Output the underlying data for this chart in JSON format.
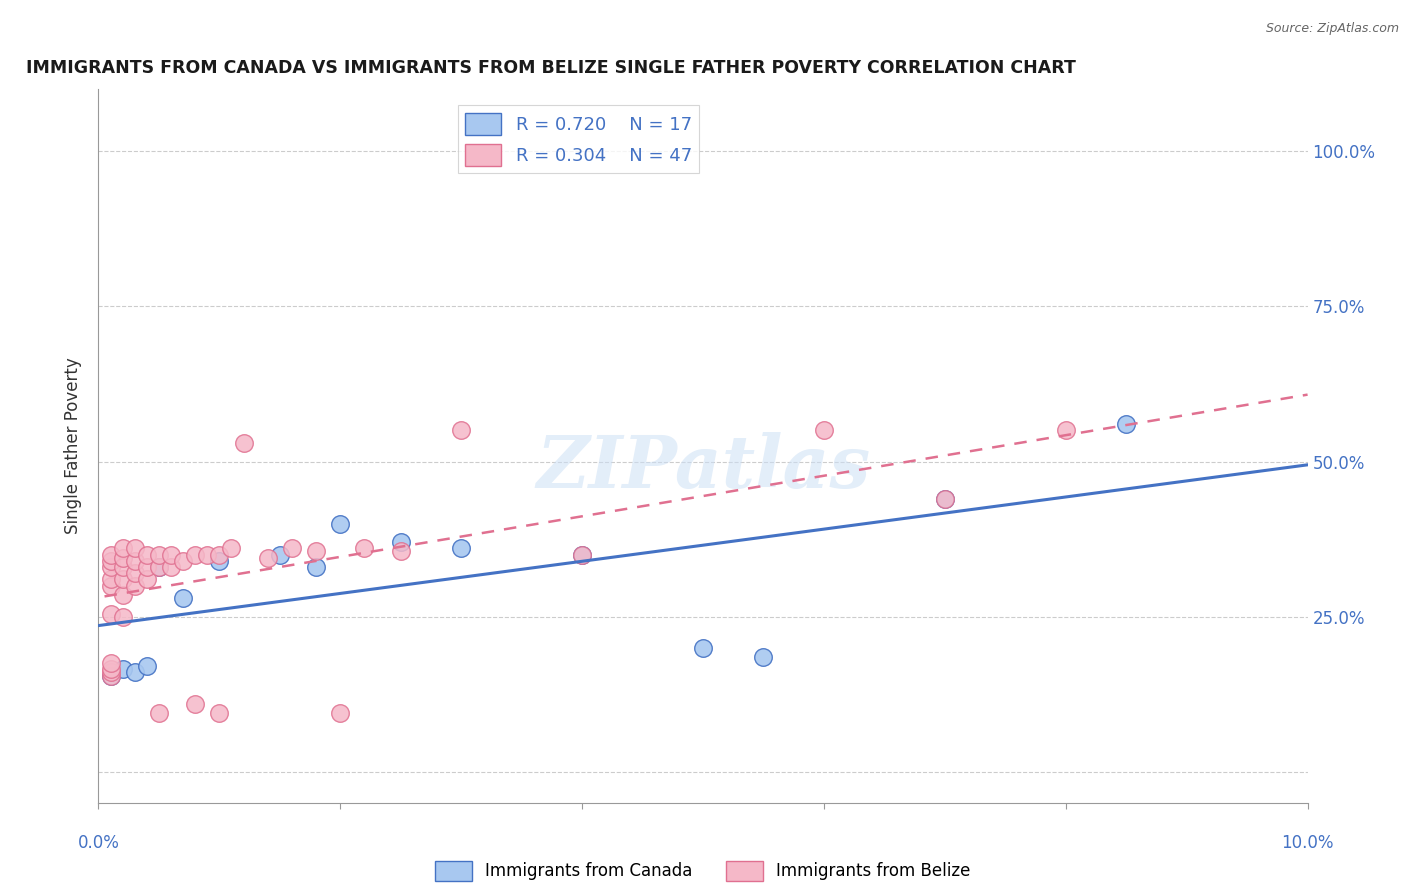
{
  "title": "IMMIGRANTS FROM CANADA VS IMMIGRANTS FROM BELIZE SINGLE FATHER POVERTY CORRELATION CHART",
  "source": "Source: ZipAtlas.com",
  "ylabel": "Single Father Poverty",
  "legend_entries": [
    {
      "label": "R = 0.720    N = 17",
      "color": "#a8c8f0"
    },
    {
      "label": "R = 0.304    N = 47",
      "color": "#f0a8b8"
    }
  ],
  "y_ticks": [
    0.0,
    0.25,
    0.5,
    0.75,
    1.0
  ],
  "y_tick_labels": [
    "",
    "25.0%",
    "50.0%",
    "75.0%",
    "100.0%"
  ],
  "x_lim": [
    0.0,
    0.1
  ],
  "y_lim": [
    -0.05,
    1.1
  ],
  "watermark": "ZIPatlas",
  "canada_points": [
    [
      0.001,
      0.155
    ],
    [
      0.002,
      0.165
    ],
    [
      0.003,
      0.16
    ],
    [
      0.004,
      0.17
    ],
    [
      0.005,
      0.33
    ],
    [
      0.007,
      0.28
    ],
    [
      0.01,
      0.34
    ],
    [
      0.015,
      0.35
    ],
    [
      0.018,
      0.33
    ],
    [
      0.02,
      0.4
    ],
    [
      0.025,
      0.37
    ],
    [
      0.03,
      0.36
    ],
    [
      0.04,
      0.35
    ],
    [
      0.05,
      0.2
    ],
    [
      0.055,
      0.185
    ],
    [
      0.07,
      0.44
    ],
    [
      0.085,
      0.56
    ]
  ],
  "belize_points": [
    [
      0.001,
      0.155
    ],
    [
      0.001,
      0.16
    ],
    [
      0.001,
      0.165
    ],
    [
      0.001,
      0.175
    ],
    [
      0.001,
      0.255
    ],
    [
      0.001,
      0.3
    ],
    [
      0.001,
      0.31
    ],
    [
      0.001,
      0.33
    ],
    [
      0.001,
      0.34
    ],
    [
      0.001,
      0.35
    ],
    [
      0.002,
      0.25
    ],
    [
      0.002,
      0.285
    ],
    [
      0.002,
      0.31
    ],
    [
      0.002,
      0.33
    ],
    [
      0.002,
      0.345
    ],
    [
      0.002,
      0.36
    ],
    [
      0.003,
      0.3
    ],
    [
      0.003,
      0.32
    ],
    [
      0.003,
      0.34
    ],
    [
      0.003,
      0.36
    ],
    [
      0.004,
      0.31
    ],
    [
      0.004,
      0.33
    ],
    [
      0.004,
      0.35
    ],
    [
      0.005,
      0.095
    ],
    [
      0.005,
      0.33
    ],
    [
      0.005,
      0.35
    ],
    [
      0.006,
      0.33
    ],
    [
      0.006,
      0.35
    ],
    [
      0.007,
      0.34
    ],
    [
      0.008,
      0.11
    ],
    [
      0.008,
      0.35
    ],
    [
      0.009,
      0.35
    ],
    [
      0.01,
      0.095
    ],
    [
      0.01,
      0.35
    ],
    [
      0.011,
      0.36
    ],
    [
      0.012,
      0.53
    ],
    [
      0.014,
      0.345
    ],
    [
      0.016,
      0.36
    ],
    [
      0.018,
      0.355
    ],
    [
      0.02,
      0.095
    ],
    [
      0.022,
      0.36
    ],
    [
      0.025,
      0.355
    ],
    [
      0.03,
      0.55
    ],
    [
      0.04,
      0.35
    ],
    [
      0.06,
      0.55
    ],
    [
      0.07,
      0.44
    ],
    [
      0.08,
      0.55
    ]
  ],
  "canada_line_color": "#4472c4",
  "belize_line_color": "#e07090",
  "canada_scatter_color": "#a8c8f0",
  "belize_scatter_color": "#f5b8c8",
  "grid_color": "#cccccc",
  "title_color": "#1a1a1a",
  "axis_label_color": "#4472c4",
  "background_color": "#ffffff"
}
